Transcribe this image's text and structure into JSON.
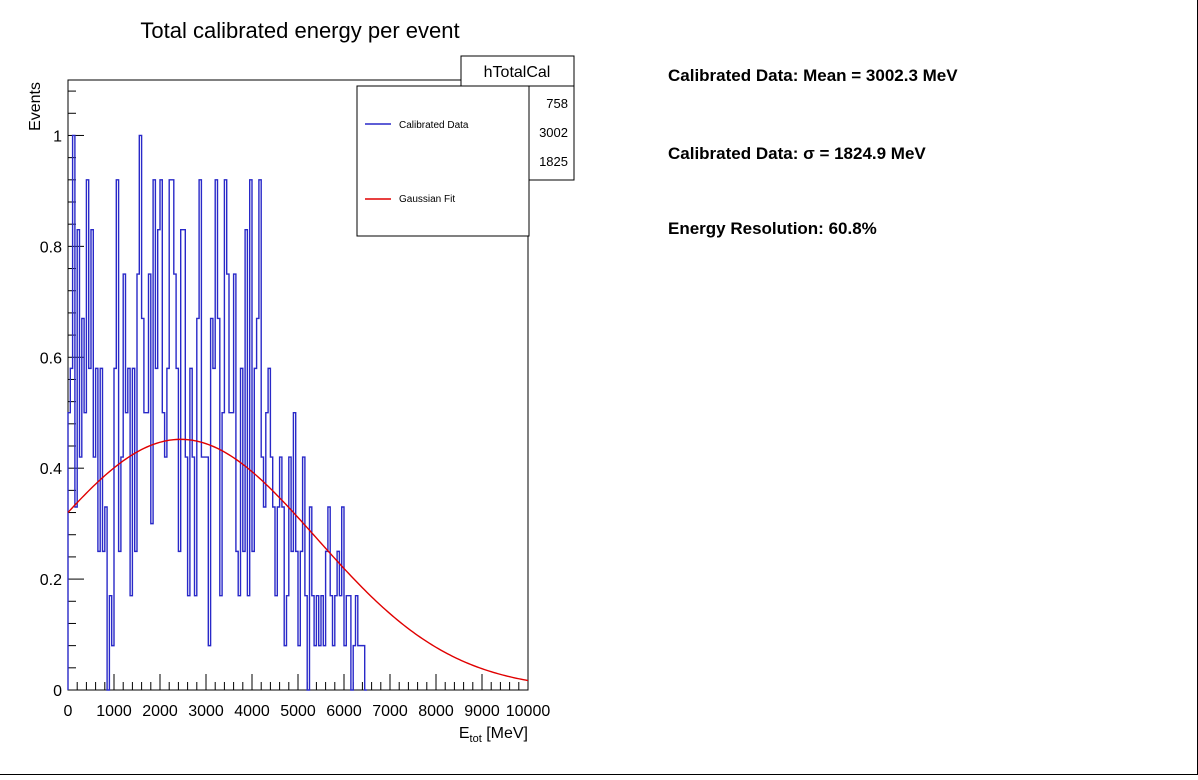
{
  "chart_data": {
    "type": "histogram",
    "title": "Total calibrated energy per event",
    "xlabel": "E",
    "xlabel_sub": "tot",
    "xlabel_unit": " [MeV]",
    "ylabel": "Events",
    "xlim": [
      0,
      10000
    ],
    "ylim": [
      0,
      1.1
    ],
    "grid": false,
    "x_ticks": [
      0,
      1000,
      2000,
      3000,
      4000,
      5000,
      6000,
      7000,
      8000,
      9000,
      10000
    ],
    "y_ticks": [
      0,
      0.2,
      0.4,
      0.6,
      0.8,
      1
    ],
    "y_tick_labels": [
      "0",
      "0.2",
      "0.4",
      "0.6",
      "0.8",
      "1"
    ],
    "legend": {
      "placement": "top-right",
      "entries": [
        {
          "label": "Calibrated Data",
          "color": "#2929c8"
        },
        {
          "label": "Gaussian Fit",
          "color": "#e00000"
        }
      ]
    },
    "stats_box": {
      "title": "hTotalCal",
      "values": [
        "758",
        "3002",
        "1825"
      ]
    },
    "series": [
      {
        "name": "Calibrated Data",
        "kind": "step",
        "color": "#2929c8",
        "bin_width": 50,
        "x_start": 0,
        "values": [
          0.5,
          0.58,
          1,
          0.33,
          0.83,
          0.42,
          0.67,
          0.5,
          0.92,
          0.58,
          0.83,
          0.42,
          0.58,
          0.25,
          0.58,
          0.25,
          0.33,
          0.0,
          0.17,
          0.08,
          0.58,
          0.92,
          0.25,
          0.42,
          0.75,
          0.5,
          0.58,
          0.17,
          0.58,
          0.25,
          0.75,
          1,
          0.67,
          0.5,
          0.5,
          0.75,
          0.3,
          0.92,
          0.58,
          0.83,
          0.92,
          0.5,
          0.42,
          0.58,
          0.92,
          0.92,
          0.75,
          0.58,
          0.25,
          0.83,
          0.83,
          0.42,
          0.17,
          0.58,
          0.42,
          0.17,
          0.67,
          0.92,
          0.42,
          0.42,
          0.42,
          0.08,
          0.67,
          0.58,
          0.92,
          0.67,
          0.17,
          0.5,
          0.92,
          0.75,
          0.5,
          0.5,
          0.75,
          0.25,
          0.17,
          0.58,
          0.25,
          0.83,
          0.17,
          0.92,
          0.25,
          0.58,
          0.67,
          0.92,
          0.42,
          0.33,
          0.5,
          0.58,
          0.42,
          0.33,
          0.17,
          0.33,
          0.42,
          0.33,
          0.08,
          0.17,
          0.42,
          0.25,
          0.5,
          0.25,
          0.08,
          0.25,
          0.42,
          0.17,
          0.0,
          0.33,
          0.17,
          0.08,
          0.17,
          0.08,
          0.17,
          0.08,
          0.25,
          0.33,
          0.17,
          0.08,
          0.17,
          0.25,
          0.17,
          0.33,
          0.08,
          0.17,
          0.17,
          0.0,
          0.08,
          0.17,
          0.08,
          0.08,
          0.08,
          0.0
        ]
      },
      {
        "name": "Gaussian Fit",
        "kind": "gaussian",
        "color": "#e00000",
        "amplitude": 0.452,
        "mean": 2450,
        "sigma": 2950,
        "x_range": [
          0,
          10000
        ]
      }
    ]
  },
  "info": {
    "mean_text": "Calibrated Data: Mean = 3002.3 MeV",
    "sigma_text": "Calibrated Data: σ = 1824.9 MeV",
    "resolution_text": "Energy Resolution: 60.8%"
  }
}
